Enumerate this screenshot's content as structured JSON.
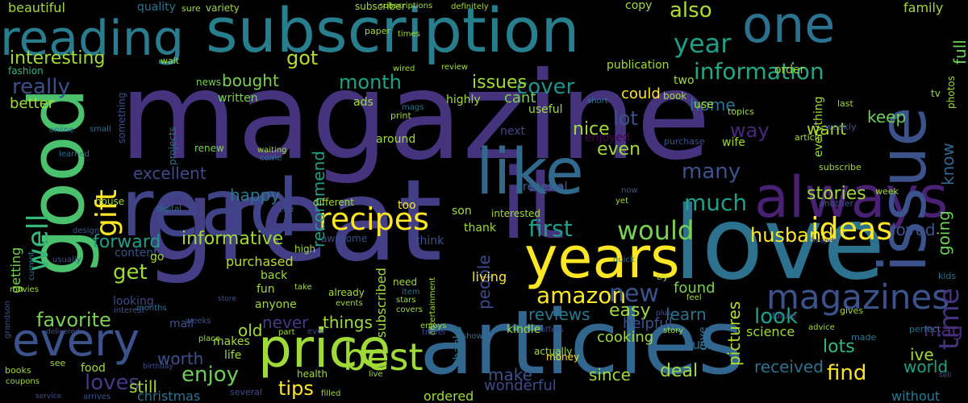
{
  "background": "#000000",
  "palette": [
    "#440154",
    "#46337e",
    "#365c8d",
    "#277f8e",
    "#1fa187",
    "#4ac16d",
    "#a0da39",
    "#fde725"
  ],
  "words": [
    {
      "text": "magazine",
      "color": "#46337e"
    },
    {
      "text": "great",
      "color": "#433e85"
    },
    {
      "text": "love",
      "color": "#2c728e"
    },
    {
      "text": "articles",
      "color": "#31668e"
    },
    {
      "text": "subscription",
      "color": "#277f8e"
    },
    {
      "text": "read",
      "color": "#404387"
    },
    {
      "text": "it",
      "color": "#46337e"
    },
    {
      "text": "good",
      "color": "#4ac16d"
    },
    {
      "text": "years",
      "color": "#fde725"
    },
    {
      "text": "like",
      "color": "#31688e"
    },
    {
      "text": "always",
      "color": "#482173"
    },
    {
      "text": "price",
      "color": "#a0da39"
    },
    {
      "text": "issue",
      "color": "#3b528b"
    },
    {
      "text": "one",
      "color": "#2c728e"
    },
    {
      "text": "reading",
      "color": "#287c8e"
    },
    {
      "text": "every",
      "color": "#3b528b"
    },
    {
      "text": "recipes",
      "color": "#fde725"
    },
    {
      "text": "best",
      "color": "#a0da39"
    },
    {
      "text": "magazines",
      "color": "#3b528b"
    },
    {
      "text": "ideas",
      "color": "#fde725"
    },
    {
      "text": "information",
      "color": "#22a884"
    },
    {
      "text": "year",
      "color": "#1f9e89"
    },
    {
      "text": "also",
      "color": "#addc30"
    },
    {
      "text": "gift",
      "color": "#fde725"
    },
    {
      "text": "well",
      "color": "#35b779"
    },
    {
      "text": "time",
      "color": "#46337e"
    },
    {
      "text": "would",
      "color": "#7ad151"
    },
    {
      "text": "informative",
      "color": "#a0da39"
    },
    {
      "text": "enjoy",
      "color": "#6ece58"
    },
    {
      "text": "amazon",
      "color": "#fde725"
    },
    {
      "text": "new",
      "color": "#3b528b"
    },
    {
      "text": "first",
      "color": "#1f9e89"
    },
    {
      "text": "look",
      "color": "#1f9e89"
    },
    {
      "text": "much",
      "color": "#1fa187"
    },
    {
      "text": "many",
      "color": "#3b528b"
    },
    {
      "text": "find",
      "color": "#fde725"
    },
    {
      "text": "loves",
      "color": "#443983"
    },
    {
      "text": "favorite",
      "color": "#7ad151"
    },
    {
      "text": "reading",
      "color": "#287c8e"
    },
    {
      "text": "tips",
      "color": "#fde725"
    },
    {
      "text": "husband",
      "color": "#fde725"
    },
    {
      "text": "lots",
      "color": "#35b779"
    },
    {
      "text": "easy",
      "color": "#a0da39"
    },
    {
      "text": "stories",
      "color": "#a0da39"
    },
    {
      "text": "month",
      "color": "#1fa187"
    },
    {
      "text": "cover",
      "color": "#21918c"
    },
    {
      "text": "issues",
      "color": "#a0da39"
    },
    {
      "text": "interesting",
      "color": "#a0da39"
    },
    {
      "text": "got",
      "color": "#b5de2b"
    },
    {
      "text": "bought",
      "color": "#7ad151"
    },
    {
      "text": "really",
      "color": "#3b528b"
    },
    {
      "text": "get",
      "color": "#a0da39"
    },
    {
      "text": "forward",
      "color": "#1f9e89"
    },
    {
      "text": "excellent",
      "color": "#3e4a89"
    },
    {
      "text": "happy",
      "color": "#2a788e"
    },
    {
      "text": "recommend",
      "color": "#1fa187"
    },
    {
      "text": "worth",
      "color": "#3b528b"
    },
    {
      "text": "loved",
      "color": "#3b528b"
    },
    {
      "text": "going",
      "color": "#6ece58"
    },
    {
      "text": "know",
      "color": "#31688e"
    },
    {
      "text": "keep",
      "color": "#6ece58"
    },
    {
      "text": "full",
      "color": "#6ece58"
    },
    {
      "text": "home",
      "color": "#2c728e"
    },
    {
      "text": "lot",
      "color": "#3b528b"
    },
    {
      "text": "nice",
      "color": "#a0da39"
    },
    {
      "text": "even",
      "color": "#a0da39"
    },
    {
      "text": "way",
      "color": "#482878"
    },
    {
      "text": "want",
      "color": "#addc30"
    },
    {
      "text": "people",
      "color": "#3e4a89"
    },
    {
      "text": "reviews",
      "color": "#2a788e"
    },
    {
      "text": "things",
      "color": "#a0da39"
    },
    {
      "text": "never",
      "color": "#443983"
    },
    {
      "text": "old",
      "color": "#a0da39"
    },
    {
      "text": "still",
      "color": "#a0da39"
    },
    {
      "text": "make",
      "color": "#3b528b"
    },
    {
      "text": "since",
      "color": "#a0da39"
    },
    {
      "text": "deal",
      "color": "#a0da39"
    },
    {
      "text": "received",
      "color": "#2c728e"
    },
    {
      "text": "world",
      "color": "#1fa187"
    },
    {
      "text": "ive",
      "color": "#a0da39"
    },
    {
      "text": "mag",
      "color": "#482878"
    },
    {
      "text": "learn",
      "color": "#2c728e"
    },
    {
      "text": "pictures",
      "color": "#b5de2b"
    },
    {
      "text": "found",
      "color": "#7ad151"
    },
    {
      "text": "science",
      "color": "#a0da39"
    },
    {
      "text": "wonderful",
      "color": "#3e4a89"
    },
    {
      "text": "christmas",
      "color": "#2c728e"
    },
    {
      "text": "ordered",
      "color": "#a0da39"
    },
    {
      "text": "without",
      "color": "#2a788e"
    },
    {
      "text": "helpful",
      "color": "#3b528b"
    },
    {
      "text": "cooking",
      "color": "#a0da39"
    },
    {
      "text": "subscribed",
      "color": "#a0da39"
    },
    {
      "text": "living",
      "color": "#fde725"
    },
    {
      "text": "getting",
      "color": "#7ad151"
    },
    {
      "text": "purchased",
      "color": "#b5de2b"
    },
    {
      "text": "cant",
      "color": "#7ad151"
    },
    {
      "text": "could",
      "color": "#fde725"
    },
    {
      "text": "better",
      "color": "#a0da39"
    },
    {
      "text": "beautiful",
      "color": "#a0da39"
    },
    {
      "text": "quality",
      "color": "#2c728e"
    },
    {
      "text": "copy",
      "color": "#a0da39"
    },
    {
      "text": "family",
      "color": "#a0da39"
    },
    {
      "text": "subscriber",
      "color": "#a0da39"
    },
    {
      "text": "publication",
      "color": "#a0da39"
    },
    {
      "text": "written",
      "color": "#7ad151"
    },
    {
      "text": "enjoyed",
      "color": "#440154"
    },
    {
      "text": "two",
      "color": "#a0da39"
    },
    {
      "text": "use",
      "color": "#a0da39"
    },
    {
      "text": "wife",
      "color": "#a0da39"
    },
    {
      "text": "everything",
      "color": "#a0da39"
    },
    {
      "text": "renewal",
      "color": "#31688e"
    },
    {
      "text": "mail",
      "color": "#3b528b"
    },
    {
      "text": "fun",
      "color": "#a0da39"
    },
    {
      "text": "anyone",
      "color": "#a0da39"
    },
    {
      "text": "back",
      "color": "#a0da39"
    },
    {
      "text": "around",
      "color": "#a0da39"
    },
    {
      "text": "useful",
      "color": "#a0da39"
    },
    {
      "text": "highly",
      "color": "#a0da39"
    },
    {
      "text": "next",
      "color": "#3e4a89"
    },
    {
      "text": "order",
      "color": "#a0da39"
    },
    {
      "text": "too",
      "color": "#fde725"
    },
    {
      "text": "son",
      "color": "#a0da39"
    },
    {
      "text": "thank",
      "color": "#a0da39"
    },
    {
      "text": "think",
      "color": "#3b528b"
    },
    {
      "text": "content",
      "color": "#3b528b"
    },
    {
      "text": "looking",
      "color": "#3e4a89"
    },
    {
      "text": "kindle",
      "color": "#a0da39"
    },
    {
      "text": "thanks",
      "color": "#2c728e"
    },
    {
      "text": "fashion",
      "color": "#35b779"
    },
    {
      "text": "go",
      "color": "#a0da39"
    },
    {
      "text": "life",
      "color": "#a0da39"
    },
    {
      "text": "food",
      "color": "#a0da39"
    },
    {
      "text": "makes",
      "color": "#a0da39"
    },
    {
      "text": "health",
      "color": "#a0da39"
    },
    {
      "text": "ads",
      "color": "#a0da39"
    },
    {
      "text": "renew",
      "color": "#7ad151"
    },
    {
      "text": "projects",
      "color": "#2c728e"
    },
    {
      "text": "news",
      "color": "#7ad151"
    },
    {
      "text": "awesome",
      "color": "#3b528b"
    },
    {
      "text": "interested",
      "color": "#a0da39"
    },
    {
      "text": "money",
      "color": "#fde725"
    },
    {
      "text": "entertainment",
      "color": "#a0da39"
    },
    {
      "text": "need",
      "color": "#a0da39"
    },
    {
      "text": "already",
      "color": "#a0da39"
    },
    {
      "text": "different",
      "color": "#a0da39"
    },
    {
      "text": "something",
      "color": "#3b528b"
    },
    {
      "text": "house",
      "color": "#a0da39"
    },
    {
      "text": "books",
      "color": "#a0da39"
    },
    {
      "text": "several",
      "color": "#3e4a89"
    },
    {
      "text": "weekly",
      "color": "#3b528b"
    },
    {
      "text": "last",
      "color": "#a0da39"
    },
    {
      "text": "article",
      "color": "#a0da39"
    },
    {
      "text": "week",
      "color": "#a0da39"
    },
    {
      "text": "subscribe",
      "color": "#a0da39"
    },
    {
      "text": "another",
      "color": "#3b528b"
    },
    {
      "text": "kids",
      "color": "#2c728e"
    },
    {
      "text": "perfect",
      "color": "#2c728e"
    },
    {
      "text": "gives",
      "color": "#a0da39"
    },
    {
      "text": "made",
      "color": "#2a788e"
    },
    {
      "text": "future",
      "color": "#3b528b"
    },
    {
      "text": "advice",
      "color": "#a0da39"
    },
    {
      "text": "story",
      "color": "#a0da39"
    },
    {
      "text": "us",
      "color": "#2c728e"
    },
    {
      "text": "give",
      "color": "#2c728e"
    },
    {
      "text": "feel",
      "color": "#a0da39"
    },
    {
      "text": "try",
      "color": "#a0da39"
    },
    {
      "text": "actually",
      "color": "#a0da39"
    },
    {
      "text": "offers",
      "color": "#3e4a89"
    },
    {
      "text": "travel",
      "color": "#3e4a89"
    },
    {
      "text": "shows",
      "color": "#2c728e"
    },
    {
      "text": "enjoys",
      "color": "#a0da39"
    },
    {
      "text": "item",
      "color": "#2c728e"
    },
    {
      "text": "covers",
      "color": "#a0da39"
    },
    {
      "text": "stars",
      "color": "#a0da39"
    },
    {
      "text": "events",
      "color": "#a0da39"
    },
    {
      "text": "live",
      "color": "#a0da39"
    },
    {
      "text": "filled",
      "color": "#a0da39"
    },
    {
      "text": "ever",
      "color": "#3e4a89"
    },
    {
      "text": "part",
      "color": "#a0da39"
    },
    {
      "text": "place",
      "color": "#a0da39"
    },
    {
      "text": "high",
      "color": "#a0da39"
    },
    {
      "text": "take",
      "color": "#a0da39"
    },
    {
      "text": "come",
      "color": "#2c728e"
    },
    {
      "text": "waiting",
      "color": "#a0da39"
    },
    {
      "text": "online",
      "color": "#2c728e"
    },
    {
      "text": "small",
      "color": "#2c728e"
    },
    {
      "text": "learned",
      "color": "#2c728e"
    },
    {
      "text": "variety",
      "color": "#a0da39"
    },
    {
      "text": "review",
      "color": "#a0da39"
    },
    {
      "text": "print",
      "color": "#a0da39"
    },
    {
      "text": "wired",
      "color": "#a0da39"
    },
    {
      "text": "topics",
      "color": "#a0da39"
    },
    {
      "text": "photos",
      "color": "#a0da39"
    },
    {
      "text": "tv",
      "color": "#a0da39"
    },
    {
      "text": "wait",
      "color": "#a0da39"
    },
    {
      "text": "paper",
      "color": "#a0da39"
    },
    {
      "text": "mags",
      "color": "#2c728e"
    },
    {
      "text": "purchase",
      "color": "#3b528b"
    },
    {
      "text": "short",
      "color": "#2c728e"
    },
    {
      "text": "sure",
      "color": "#a0da39"
    },
    {
      "text": "definitely",
      "color": "#a0da39"
    },
    {
      "text": "subscriptions",
      "color": "#a0da39"
    },
    {
      "text": "times",
      "color": "#a0da39"
    },
    {
      "text": "book",
      "color": "#a0da39"
    },
    {
      "text": "see",
      "color": "#a0da39"
    },
    {
      "text": "current",
      "color": "#2c728e"
    },
    {
      "text": "usually",
      "color": "#3b528b"
    },
    {
      "text": "movies",
      "color": "#a0da39"
    },
    {
      "text": "digital",
      "color": "#2c728e"
    },
    {
      "text": "design",
      "color": "#3b528b"
    },
    {
      "text": "weeks",
      "color": "#3b528b"
    },
    {
      "text": "months",
      "color": "#2c728e"
    },
    {
      "text": "birthday",
      "color": "#3b528b"
    },
    {
      "text": "interest",
      "color": "#3b528b"
    },
    {
      "text": "coupons",
      "color": "#a0da39"
    },
    {
      "text": "arrives",
      "color": "#3b528b"
    },
    {
      "text": "service",
      "color": "#3b528b"
    },
    {
      "text": "grandson",
      "color": "#3b528b"
    },
    {
      "text": "delivered",
      "color": "#3b528b"
    },
    {
      "text": "store",
      "color": "#3b528b"
    },
    {
      "text": "cost",
      "color": "#3b528b"
    },
    {
      "text": "quick",
      "color": "#2c728e"
    },
    {
      "text": "plus",
      "color": "#3b528b"
    },
    {
      "text": "yet",
      "color": "#a0da39"
    },
    {
      "text": "now",
      "color": "#3b528b"
    },
    {
      "text": "cheaper",
      "color": "#3b528b"
    },
    {
      "text": "sell",
      "color": "#3b528b"
    }
  ]
}
